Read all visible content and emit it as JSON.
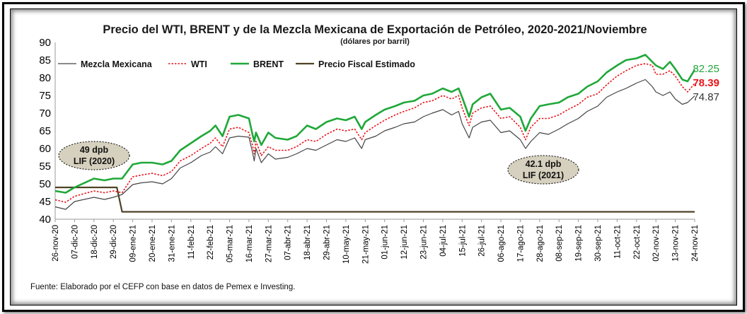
{
  "chart_data": {
    "type": "line",
    "title": "Precio del WTI, BRENT y de la Mezcla Mexicana de Exportación de Petróleo, 2020-2021/Noviembre",
    "subtitle": "(dólares por barril)",
    "ylim": [
      40,
      90
    ],
    "yticks": [
      "40",
      "45",
      "50",
      "55",
      "60",
      "65",
      "70",
      "75",
      "80",
      "85",
      "90"
    ],
    "xticks": [
      "26-nov-20",
      "07-dic-20",
      "18-dic-20",
      "29-dic-20",
      "09-ene-21",
      "20-ene-21",
      "31-ene-21",
      "11-feb-21",
      "22-feb-21",
      "05-mar-21",
      "16-mar-21",
      "27-mar-21",
      "07-abr-21",
      "18-abr-21",
      "29-abr-21",
      "10-may-21",
      "21-may-21",
      "01-jun-21",
      "12-jun-21",
      "23-jun-21",
      "04-jul-21",
      "15-jul-21",
      "26-jul-21",
      "06-ago-21",
      "17-ago-21",
      "28-ago-21",
      "08-sep-21",
      "19-sep-21",
      "30-sep-21",
      "11-oct-21",
      "22-oct-21",
      "02-nov-21",
      "13-nov-21",
      "24-nov-21"
    ],
    "series": [
      {
        "name": "Mezcla Mexicana",
        "color": "#444444",
        "style": "solid-thin",
        "points": [
          [
            "26-nov-20",
            43.5
          ],
          [
            "02-dic-20",
            42.8
          ],
          [
            "07-dic-20",
            45.0
          ],
          [
            "18-dic-20",
            46.2
          ],
          [
            "24-dic-20",
            45.6
          ],
          [
            "29-dic-20",
            46.2
          ],
          [
            "03-ene-21",
            47.0
          ],
          [
            "09-ene-21",
            49.8
          ],
          [
            "14-ene-21",
            50.3
          ],
          [
            "20-ene-21",
            50.6
          ],
          [
            "26-ene-21",
            50.0
          ],
          [
            "31-ene-21",
            51.5
          ],
          [
            "05-feb-21",
            54.5
          ],
          [
            "11-feb-21",
            56.0
          ],
          [
            "17-feb-21",
            58.0
          ],
          [
            "22-feb-21",
            59.0
          ],
          [
            "25-feb-21",
            60.5
          ],
          [
            "01-mar-21",
            58.5
          ],
          [
            "05-mar-21",
            63.0
          ],
          [
            "10-mar-21",
            63.5
          ],
          [
            "16-mar-21",
            63.2
          ],
          [
            "18-mar-21",
            59.0
          ],
          [
            "19-mar-21",
            56.5
          ],
          [
            "20-mar-21",
            60.0
          ],
          [
            "23-mar-21",
            56.0
          ],
          [
            "27-mar-21",
            58.5
          ],
          [
            "31-mar-21",
            57.0
          ],
          [
            "07-abr-21",
            57.5
          ],
          [
            "12-abr-21",
            58.5
          ],
          [
            "18-abr-21",
            60.0
          ],
          [
            "23-abr-21",
            59.5
          ],
          [
            "29-abr-21",
            61.0
          ],
          [
            "05-may-21",
            62.5
          ],
          [
            "10-may-21",
            62.0
          ],
          [
            "15-may-21",
            63.0
          ],
          [
            "19-may-21",
            60.0
          ],
          [
            "21-may-21",
            62.5
          ],
          [
            "27-may-21",
            63.5
          ],
          [
            "01-jun-21",
            65.0
          ],
          [
            "07-jun-21",
            66.0
          ],
          [
            "12-jun-21",
            67.0
          ],
          [
            "18-jun-21",
            67.5
          ],
          [
            "23-jun-21",
            69.0
          ],
          [
            "28-jun-21",
            70.0
          ],
          [
            "04-jul-21",
            71.0
          ],
          [
            "09-jul-21",
            69.5
          ],
          [
            "13-jul-21",
            70.5
          ],
          [
            "15-jul-21",
            67.0
          ],
          [
            "19-jul-21",
            63.0
          ],
          [
            "21-jul-21",
            66.0
          ],
          [
            "26-jul-21",
            67.5
          ],
          [
            "31-jul-21",
            68.0
          ],
          [
            "06-ago-21",
            64.5
          ],
          [
            "11-ago-21",
            65.0
          ],
          [
            "17-ago-21",
            62.5
          ],
          [
            "20-ago-21",
            60.0
          ],
          [
            "23-ago-21",
            62.0
          ],
          [
            "28-ago-21",
            64.5
          ],
          [
            "02-sep-21",
            64.0
          ],
          [
            "08-sep-21",
            65.5
          ],
          [
            "13-sep-21",
            67.0
          ],
          [
            "19-sep-21",
            68.5
          ],
          [
            "24-sep-21",
            70.5
          ],
          [
            "30-sep-21",
            72.0
          ],
          [
            "05-oct-21",
            74.5
          ],
          [
            "11-oct-21",
            76.0
          ],
          [
            "16-oct-21",
            77.0
          ],
          [
            "22-oct-21",
            78.5
          ],
          [
            "27-oct-21",
            79.5
          ],
          [
            "31-oct-21",
            77.5
          ],
          [
            "02-nov-21",
            76.0
          ],
          [
            "06-nov-21",
            75.0
          ],
          [
            "10-nov-21",
            76.0
          ],
          [
            "13-nov-21",
            74.0
          ],
          [
            "17-nov-21",
            72.5
          ],
          [
            "20-nov-21",
            73.0
          ],
          [
            "24-nov-21",
            74.87
          ]
        ]
      },
      {
        "name": "WTI",
        "color": "#e8141b",
        "style": "dotted",
        "points": [
          [
            "26-nov-20",
            45.5
          ],
          [
            "02-dic-20",
            44.8
          ],
          [
            "07-dic-20",
            46.5
          ],
          [
            "18-dic-20",
            48.0
          ],
          [
            "24-dic-20",
            47.5
          ],
          [
            "29-dic-20",
            48.0
          ],
          [
            "03-ene-21",
            47.5
          ],
          [
            "09-ene-21",
            52.0
          ],
          [
            "14-ene-21",
            52.5
          ],
          [
            "20-ene-21",
            53.0
          ],
          [
            "26-ene-21",
            52.3
          ],
          [
            "31-ene-21",
            53.5
          ],
          [
            "05-feb-21",
            56.5
          ],
          [
            "11-feb-21",
            58.0
          ],
          [
            "17-feb-21",
            60.0
          ],
          [
            "22-feb-21",
            61.5
          ],
          [
            "25-feb-21",
            63.0
          ],
          [
            "01-mar-21",
            60.5
          ],
          [
            "05-mar-21",
            65.5
          ],
          [
            "10-mar-21",
            66.0
          ],
          [
            "16-mar-21",
            64.5
          ],
          [
            "18-mar-21",
            61.0
          ],
          [
            "19-mar-21",
            58.5
          ],
          [
            "20-mar-21",
            62.0
          ],
          [
            "23-mar-21",
            58.0
          ],
          [
            "27-mar-21",
            60.5
          ],
          [
            "31-mar-21",
            59.5
          ],
          [
            "07-abr-21",
            59.5
          ],
          [
            "12-abr-21",
            60.5
          ],
          [
            "18-abr-21",
            62.5
          ],
          [
            "23-abr-21",
            62.0
          ],
          [
            "29-abr-21",
            64.0
          ],
          [
            "05-may-21",
            65.5
          ],
          [
            "10-may-21",
            65.0
          ],
          [
            "15-may-21",
            65.5
          ],
          [
            "19-may-21",
            62.5
          ],
          [
            "21-may-21",
            64.5
          ],
          [
            "27-may-21",
            66.5
          ],
          [
            "01-jun-21",
            68.0
          ],
          [
            "07-jun-21",
            69.5
          ],
          [
            "12-jun-21",
            70.5
          ],
          [
            "18-jun-21",
            71.5
          ],
          [
            "23-jun-21",
            73.0
          ],
          [
            "28-jun-21",
            73.5
          ],
          [
            "04-jul-21",
            75.0
          ],
          [
            "09-jul-21",
            74.0
          ],
          [
            "13-jul-21",
            75.0
          ],
          [
            "15-jul-21",
            71.5
          ],
          [
            "19-jul-21",
            66.5
          ],
          [
            "21-jul-21",
            70.0
          ],
          [
            "26-jul-21",
            71.5
          ],
          [
            "31-jul-21",
            72.0
          ],
          [
            "06-ago-21",
            68.5
          ],
          [
            "11-ago-21",
            69.0
          ],
          [
            "17-ago-21",
            66.0
          ],
          [
            "20-ago-21",
            62.5
          ],
          [
            "23-ago-21",
            66.0
          ],
          [
            "28-ago-21",
            68.5
          ],
          [
            "02-sep-21",
            68.5
          ],
          [
            "08-sep-21",
            69.5
          ],
          [
            "13-sep-21",
            71.0
          ],
          [
            "19-sep-21",
            72.5
          ],
          [
            "24-sep-21",
            74.5
          ],
          [
            "30-sep-21",
            75.5
          ],
          [
            "05-oct-21",
            78.0
          ],
          [
            "11-oct-21",
            80.5
          ],
          [
            "16-oct-21",
            82.0
          ],
          [
            "22-oct-21",
            83.5
          ],
          [
            "27-oct-21",
            84.0
          ],
          [
            "31-oct-21",
            83.5
          ],
          [
            "02-nov-21",
            81.0
          ],
          [
            "06-nov-21",
            81.0
          ],
          [
            "10-nov-21",
            82.0
          ],
          [
            "13-nov-21",
            80.5
          ],
          [
            "17-nov-21",
            77.5
          ],
          [
            "20-nov-21",
            76.0
          ],
          [
            "24-nov-21",
            78.39
          ]
        ]
      },
      {
        "name": "BRENT",
        "color": "#1fa839",
        "style": "solid-thick",
        "points": [
          [
            "26-nov-20",
            48.0
          ],
          [
            "02-dic-20",
            47.5
          ],
          [
            "07-dic-20",
            49.0
          ],
          [
            "18-dic-20",
            51.5
          ],
          [
            "24-dic-20",
            51.0
          ],
          [
            "29-dic-20",
            51.5
          ],
          [
            "03-ene-21",
            51.5
          ],
          [
            "09-ene-21",
            55.5
          ],
          [
            "14-ene-21",
            56.0
          ],
          [
            "20-ene-21",
            56.0
          ],
          [
            "26-ene-21",
            55.5
          ],
          [
            "31-ene-21",
            56.5
          ],
          [
            "05-feb-21",
            59.5
          ],
          [
            "11-feb-21",
            61.5
          ],
          [
            "17-feb-21",
            63.5
          ],
          [
            "22-feb-21",
            65.0
          ],
          [
            "25-feb-21",
            66.5
          ],
          [
            "01-mar-21",
            63.5
          ],
          [
            "05-mar-21",
            69.0
          ],
          [
            "10-mar-21",
            69.5
          ],
          [
            "16-mar-21",
            68.5
          ],
          [
            "18-mar-21",
            64.0
          ],
          [
            "19-mar-21",
            62.0
          ],
          [
            "20-mar-21",
            64.5
          ],
          [
            "23-mar-21",
            61.0
          ],
          [
            "27-mar-21",
            64.5
          ],
          [
            "31-mar-21",
            63.0
          ],
          [
            "07-abr-21",
            62.5
          ],
          [
            "12-abr-21",
            63.5
          ],
          [
            "18-abr-21",
            66.5
          ],
          [
            "23-abr-21",
            65.5
          ],
          [
            "29-abr-21",
            67.5
          ],
          [
            "05-may-21",
            68.5
          ],
          [
            "10-may-21",
            68.0
          ],
          [
            "15-may-21",
            69.0
          ],
          [
            "19-may-21",
            65.5
          ],
          [
            "21-may-21",
            67.5
          ],
          [
            "27-may-21",
            69.5
          ],
          [
            "01-jun-21",
            71.0
          ],
          [
            "07-jun-21",
            72.0
          ],
          [
            "12-jun-21",
            73.0
          ],
          [
            "18-jun-21",
            73.5
          ],
          [
            "23-jun-21",
            75.0
          ],
          [
            "28-jun-21",
            75.5
          ],
          [
            "04-jul-21",
            77.0
          ],
          [
            "09-jul-21",
            76.0
          ],
          [
            "13-jul-21",
            77.0
          ],
          [
            "15-jul-21",
            74.5
          ],
          [
            "19-jul-21",
            69.0
          ],
          [
            "21-jul-21",
            72.5
          ],
          [
            "26-jul-21",
            74.5
          ],
          [
            "31-jul-21",
            75.5
          ],
          [
            "06-ago-21",
            71.0
          ],
          [
            "11-ago-21",
            71.5
          ],
          [
            "17-ago-21",
            69.0
          ],
          [
            "20-ago-21",
            65.0
          ],
          [
            "23-ago-21",
            68.5
          ],
          [
            "28-ago-21",
            72.0
          ],
          [
            "02-sep-21",
            72.5
          ],
          [
            "08-sep-21",
            73.0
          ],
          [
            "13-sep-21",
            74.5
          ],
          [
            "19-sep-21",
            75.5
          ],
          [
            "24-sep-21",
            77.5
          ],
          [
            "30-sep-21",
            79.0
          ],
          [
            "05-oct-21",
            81.5
          ],
          [
            "11-oct-21",
            83.5
          ],
          [
            "16-oct-21",
            85.0
          ],
          [
            "22-oct-21",
            85.5
          ],
          [
            "27-oct-21",
            86.5
          ],
          [
            "31-oct-21",
            84.5
          ],
          [
            "02-nov-21",
            83.5
          ],
          [
            "06-nov-21",
            82.5
          ],
          [
            "10-nov-21",
            84.5
          ],
          [
            "13-nov-21",
            82.5
          ],
          [
            "17-nov-21",
            79.5
          ],
          [
            "20-nov-21",
            79.0
          ],
          [
            "24-nov-21",
            82.25
          ]
        ]
      },
      {
        "name": "Precio Fiscal Estimado",
        "color": "#4f4326",
        "style": "solid",
        "points": [
          [
            "26-nov-20",
            49
          ],
          [
            "31-dic-20",
            49
          ],
          [
            "03-ene-21",
            42.1
          ],
          [
            "24-nov-21",
            42.1
          ]
        ]
      }
    ],
    "end_labels": [
      {
        "text": "82.25",
        "value": 82.25,
        "color": "#1fa839"
      },
      {
        "text": "78.39",
        "value": 78.39,
        "color": "#e8141b"
      },
      {
        "text": "74.87",
        "value": 74.87,
        "color": "#333333"
      }
    ],
    "annotations": [
      {
        "line1": "49 dpb",
        "line2": "LIF (2020)"
      },
      {
        "line1": "42.1 dpb",
        "line2": "LIF (2021)"
      }
    ],
    "legend_position": "top-left",
    "grid": false
  },
  "source": "Fuente: Elaborado por el CEFP con base en datos de Pemex e Investing."
}
